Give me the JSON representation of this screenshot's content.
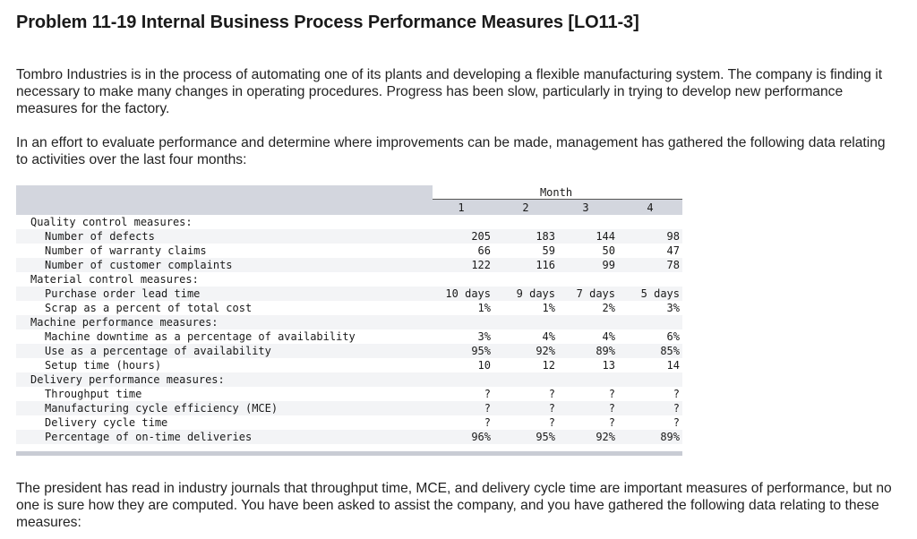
{
  "title": "Problem 11-19 Internal Business Process Performance Measures [LO11-3]",
  "paragraphs": [
    "Tombro Industries is in the process of automating one of its plants and developing a flexible manufacturing system. The company is finding it necessary to make many changes in operating procedures. Progress has been slow, particularly in trying to develop new performance measures for the factory.",
    "In an effort to evaluate performance and determine where improvements can be made, management has gathered the following data relating to activities over the last four months:",
    "The president has read in industry journals that throughput time, MCE, and delivery cycle time are important measures of performance, but no one is sure how they are computed. You have been asked to assist the company, and you have gathered the following data relating to these measures:"
  ],
  "table": {
    "month_header": "Month",
    "columns": [
      "1",
      "2",
      "3",
      "4"
    ],
    "rows": [
      {
        "type": "section",
        "label": "Quality control measures:"
      },
      {
        "type": "item",
        "label": "Number of defects",
        "values": [
          "205",
          "183",
          "144",
          "98"
        ]
      },
      {
        "type": "item",
        "label": "Number of warranty claims",
        "values": [
          "66",
          "59",
          "50",
          "47"
        ]
      },
      {
        "type": "item",
        "label": "Number of customer complaints",
        "values": [
          "122",
          "116",
          "99",
          "78"
        ]
      },
      {
        "type": "section",
        "label": "Material control measures:"
      },
      {
        "type": "item",
        "label": "Purchase order lead time",
        "values": [
          "10 days",
          "9 days",
          "7 days",
          "5 days"
        ]
      },
      {
        "type": "item",
        "label": "Scrap as a percent of total cost",
        "values": [
          "1%",
          "1%",
          "2%",
          "3%"
        ]
      },
      {
        "type": "section",
        "label": "Machine performance measures:"
      },
      {
        "type": "item",
        "label": "Machine downtime as a percentage of availability",
        "values": [
          "3%",
          "4%",
          "4%",
          "6%"
        ]
      },
      {
        "type": "item",
        "label": "Use as a percentage of availability",
        "values": [
          "95%",
          "92%",
          "89%",
          "85%"
        ]
      },
      {
        "type": "item",
        "label": "Setup time (hours)",
        "values": [
          "10",
          "12",
          "13",
          "14"
        ]
      },
      {
        "type": "section",
        "label": "Delivery performance measures:"
      },
      {
        "type": "item",
        "label": "Throughput time",
        "values": [
          "?",
          "?",
          "?",
          "?"
        ]
      },
      {
        "type": "item",
        "label": "Manufacturing cycle efficiency (MCE)",
        "values": [
          "?",
          "?",
          "?",
          "?"
        ]
      },
      {
        "type": "item",
        "label": "Delivery cycle time",
        "values": [
          "?",
          "?",
          "?",
          "?"
        ]
      },
      {
        "type": "item",
        "label": "Percentage of on-time deliveries",
        "values": [
          "96%",
          "95%",
          "92%",
          "89%"
        ]
      }
    ]
  }
}
